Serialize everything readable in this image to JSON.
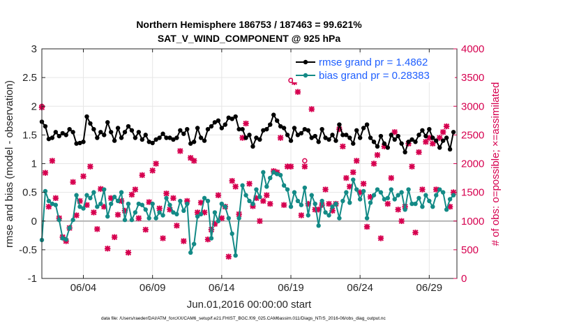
{
  "chart_data": {
    "type": "line",
    "title_line1": "Northern Hemisphere 186753 / 187463 = 99.621%",
    "title_line2": "SAT_V_WIND_COMPONENT @ 925 hPa",
    "xlabel": "Jun.01,2016 00:00:00 start",
    "ylabel": "rmse and bias (model - observation)",
    "ylabel_right": "# of obs: o=possible; ×=assimilated",
    "x_ticks": [
      "06/04",
      "06/09",
      "06/14",
      "06/19",
      "06/24",
      "06/29"
    ],
    "x_tick_days": [
      4,
      9,
      14,
      19,
      24,
      29
    ],
    "xlim": [
      1,
      31
    ],
    "ylim": [
      -1,
      3
    ],
    "y_ticks": [
      "-1",
      "-0.5",
      "0",
      "0.5",
      "1",
      "1.5",
      "2",
      "2.5",
      "3"
    ],
    "y_tick_values": [
      -1,
      -0.5,
      0,
      0.5,
      1,
      1.5,
      2,
      2.5,
      3
    ],
    "ylim_right": [
      0,
      4000
    ],
    "y_ticks_right": [
      "0",
      "500",
      "1000",
      "1500",
      "2000",
      "2500",
      "3000",
      "3500",
      "4000"
    ],
    "y_tick_values_right": [
      0,
      500,
      1000,
      1500,
      2000,
      2500,
      3000,
      3500,
      4000
    ],
    "grid": true,
    "legend_position": "top-right",
    "series": [
      {
        "name": "rmse grand pr = 1.4862",
        "color": "#000000",
        "axis": "left",
        "days": [
          1.0,
          1.25,
          1.5,
          1.75,
          2.0,
          2.25,
          2.5,
          2.75,
          3.0,
          3.25,
          3.5,
          3.75,
          4.0,
          4.25,
          4.5,
          4.75,
          5.0,
          5.25,
          5.5,
          5.75,
          6.0,
          6.25,
          6.5,
          6.75,
          7.0,
          7.25,
          7.5,
          7.75,
          8.0,
          8.25,
          8.5,
          8.75,
          9.0,
          9.25,
          9.5,
          9.75,
          10.0,
          10.25,
          10.5,
          10.75,
          11.0,
          11.25,
          11.5,
          11.75,
          12.0,
          12.25,
          12.5,
          12.75,
          13.0,
          13.25,
          13.5,
          13.75,
          14.0,
          14.25,
          14.5,
          14.75,
          15.0,
          15.25,
          15.5,
          15.75,
          16.0,
          16.25,
          16.5,
          16.75,
          17.0,
          17.25,
          17.5,
          17.75,
          18.0,
          18.25,
          18.5,
          18.75,
          19.0,
          19.25,
          19.5,
          19.75,
          20.0,
          20.25,
          20.5,
          20.75,
          21.0,
          21.25,
          21.5,
          21.75,
          22.0,
          22.25,
          22.5,
          22.75,
          23.0,
          23.25,
          23.5,
          23.75,
          24.0,
          24.25,
          24.5,
          24.75,
          25.0,
          25.25,
          25.5,
          25.75,
          26.0,
          26.25,
          26.5,
          26.75,
          27.0,
          27.25,
          27.5,
          27.75,
          28.0,
          28.25,
          28.5,
          28.75,
          29.0,
          29.25,
          29.5,
          29.75,
          30.0,
          30.25,
          30.5,
          30.75
        ],
        "values": [
          1.73,
          1.65,
          1.43,
          1.45,
          1.55,
          1.48,
          1.53,
          1.5,
          1.6,
          1.55,
          1.35,
          1.36,
          1.38,
          1.82,
          1.7,
          1.6,
          1.45,
          1.55,
          1.5,
          1.72,
          1.55,
          1.4,
          1.62,
          1.45,
          1.55,
          1.65,
          1.58,
          1.45,
          1.55,
          1.42,
          1.5,
          1.38,
          1.36,
          1.42,
          1.45,
          1.52,
          1.45,
          1.45,
          1.42,
          1.45,
          1.58,
          1.52,
          1.6,
          1.35,
          1.38,
          1.62,
          1.45,
          1.4,
          1.6,
          1.65,
          1.72,
          1.75,
          1.62,
          1.68,
          1.8,
          1.78,
          1.82,
          1.6,
          1.6,
          1.45,
          1.5,
          1.3,
          1.45,
          1.42,
          1.58,
          1.6,
          1.68,
          1.85,
          1.75,
          1.65,
          1.62,
          1.5,
          1.4,
          1.62,
          1.5,
          1.53,
          1.6,
          1.58,
          1.45,
          1.48,
          1.38,
          1.6,
          1.45,
          1.42,
          1.5,
          1.4,
          1.68,
          1.5,
          1.5,
          1.45,
          1.35,
          1.58,
          1.45,
          1.62,
          1.68,
          1.45,
          1.38,
          1.3,
          1.48,
          1.35,
          1.28,
          1.5,
          1.42,
          1.48,
          1.35,
          1.2,
          1.38,
          1.42,
          1.38,
          1.5,
          1.58,
          1.48,
          1.6,
          1.45,
          1.4,
          1.28,
          1.4,
          1.45,
          1.25,
          1.55
        ],
        "marker": "dot"
      },
      {
        "name": "bias grand pr = 0.28383",
        "color": "#138a86",
        "axis": "left",
        "days": [
          1.0,
          1.25,
          1.5,
          1.75,
          2.0,
          2.25,
          2.5,
          2.75,
          3.0,
          3.25,
          3.5,
          3.75,
          4.0,
          4.25,
          4.5,
          4.75,
          5.0,
          5.25,
          5.5,
          5.75,
          6.0,
          6.25,
          6.5,
          6.75,
          7.0,
          7.25,
          7.5,
          7.75,
          8.0,
          8.25,
          8.5,
          8.75,
          9.0,
          9.25,
          9.5,
          9.75,
          10.0,
          10.25,
          10.5,
          10.75,
          11.0,
          11.25,
          11.5,
          11.75,
          12.0,
          12.25,
          12.5,
          12.75,
          13.0,
          13.25,
          13.5,
          13.75,
          14.0,
          14.25,
          14.5,
          14.75,
          15.0,
          15.25,
          15.5,
          15.75,
          16.0,
          16.25,
          16.5,
          16.75,
          17.0,
          17.25,
          17.5,
          17.75,
          18.0,
          18.25,
          18.5,
          18.75,
          19.0,
          19.25,
          19.5,
          19.75,
          20.0,
          20.25,
          20.5,
          20.75,
          21.0,
          21.25,
          21.5,
          21.75,
          22.0,
          22.25,
          22.5,
          22.75,
          23.0,
          23.25,
          23.5,
          23.75,
          24.0,
          24.25,
          24.5,
          24.75,
          25.0,
          25.25,
          25.5,
          25.75,
          26.0,
          26.25,
          26.5,
          26.75,
          27.0,
          27.25,
          27.5,
          27.75,
          28.0,
          28.25,
          28.5,
          28.75,
          29.0,
          29.25,
          29.5,
          29.75,
          30.0,
          30.25,
          30.5,
          30.75
        ],
        "values": [
          -0.33,
          0.52,
          0.35,
          0.3,
          0.28,
          0.02,
          -0.3,
          -0.32,
          -0.12,
          0.02,
          0.45,
          0.25,
          0.22,
          0.45,
          0.4,
          0.5,
          0.25,
          0.3,
          0.55,
          0.08,
          0.3,
          0.42,
          0.35,
          0.5,
          0.02,
          0.3,
          0.02,
          0.15,
          0.3,
          0.28,
          0.2,
          0.05,
          0.3,
          0.05,
          0.15,
          0.1,
          0.4,
          0.28,
          0.15,
          0.12,
          0.35,
          0.18,
          0.3,
          -0.55,
          -0.4,
          0.08,
          0.12,
          0.4,
          0.35,
          -0.3,
          0.15,
          0.0,
          0.3,
          0.25,
          0.05,
          -0.22,
          -0.6,
          0.05,
          0.62,
          0.45,
          0.35,
          0.3,
          0.55,
          0.42,
          0.85,
          0.6,
          0.75,
          0.85,
          0.82,
          0.8,
          0.62,
          0.55,
          0.25,
          0.5,
          0.35,
          0.28,
          0.58,
          0.1,
          0.45,
          0.3,
          -0.08,
          0.35,
          0.15,
          0.1,
          0.25,
          0.3,
          0.05,
          0.35,
          0.5,
          0.32,
          0.72,
          0.55,
          0.38,
          0.52,
          0.05,
          0.32,
          0.45,
          0.55,
          0.5,
          0.38,
          0.4,
          0.55,
          0.38,
          0.45,
          0.5,
          0.2,
          0.55,
          0.3,
          0.3,
          0.4,
          0.25,
          0.45,
          0.35,
          0.25,
          0.45,
          0.55,
          0.5,
          0.2,
          0.38,
          0.45
        ],
        "marker": "dot"
      },
      {
        "name": "obs assimilated",
        "color": "#d6004f",
        "axis": "right",
        "days": [
          1.0,
          1.25,
          1.5,
          1.75,
          2.0,
          2.25,
          2.5,
          2.75,
          3.0,
          3.25,
          3.5,
          3.75,
          4.0,
          4.25,
          4.5,
          4.75,
          5.0,
          5.25,
          5.5,
          5.75,
          6.0,
          6.25,
          6.5,
          6.75,
          7.0,
          7.25,
          7.5,
          7.75,
          8.0,
          8.25,
          8.5,
          8.75,
          9.0,
          9.25,
          9.5,
          9.75,
          10.0,
          10.25,
          10.5,
          10.75,
          11.0,
          11.25,
          11.5,
          11.75,
          12.0,
          12.25,
          12.5,
          12.75,
          13.0,
          13.25,
          13.5,
          13.75,
          14.0,
          14.25,
          14.5,
          14.75,
          15.0,
          15.25,
          15.5,
          15.75,
          16.0,
          16.25,
          16.5,
          16.75,
          17.0,
          17.25,
          17.5,
          17.75,
          18.0,
          18.25,
          18.5,
          18.75,
          19.0,
          19.25,
          19.5,
          19.75,
          20.0,
          20.25,
          20.5,
          20.75,
          21.0,
          21.25,
          21.5,
          21.75,
          22.0,
          22.25,
          22.5,
          22.75,
          23.0,
          23.25,
          23.5,
          23.75,
          24.0,
          24.25,
          24.5,
          24.75,
          25.0,
          25.25,
          25.5,
          25.75,
          26.0,
          26.25,
          26.5,
          26.75,
          27.0,
          27.25,
          27.5,
          27.75,
          28.0,
          28.25,
          28.5,
          28.75,
          29.0,
          29.25,
          29.5,
          29.75,
          30.0,
          30.25,
          30.5,
          30.75
        ],
        "values": [
          2980,
          1840,
          1250,
          2050,
          1400,
          1050,
          720,
          650,
          880,
          1680,
          1100,
          1350,
          1780,
          1280,
          1950,
          1150,
          860,
          1560,
          1250,
          520,
          1400,
          720,
          1110,
          1350,
          1180,
          450,
          1460,
          1550,
          1050,
          1800,
          850,
          1330,
          1880,
          2000,
          1220,
          700,
          1480,
          1200,
          1400,
          920,
          2220,
          650,
          1350,
          2100,
          2050,
          1150,
          1320,
          1150,
          680,
          850,
          950,
          1450,
          1050,
          1250,
          380,
          1700,
          1600,
          1120,
          2450,
          2700,
          1650,
          1260,
          1400,
          1000,
          1350,
          1450,
          1300,
          1870,
          1850,
          2450,
          1280,
          1950,
          1950,
          3420,
          3250,
          1100,
          1950,
          1300,
          2950,
          1200,
          1200,
          1280,
          1550,
          1300,
          1180,
          1300,
          2600,
          2300,
          1750,
          1600,
          1850,
          2050,
          1500,
          1650,
          900,
          1420,
          2000,
          2150,
          700,
          2300,
          1300,
          1750,
          2550,
          1200,
          1000,
          1250,
          2350,
          1950,
          800,
          2200,
          1550,
          2380,
          2450,
          2350,
          1550,
          2450,
          2550,
          2650,
          1250,
          1500
        ],
        "marker": "x"
      },
      {
        "name": "obs possible",
        "color": "#d6004f",
        "axis": "right",
        "days": [
          1.0,
          19.0,
          20.0
        ],
        "values": [
          3000,
          3450,
          2050
        ],
        "marker": "o"
      }
    ],
    "zero_line": 0,
    "footer": "data file: /Users/raeder/DAI/ATM_forcXX/CAM6_setup/f.e21.FHIST_BGC.f09_025.CAM6assim.011/Diags_NTrS_2016-06/obs_diag_output.nc"
  }
}
